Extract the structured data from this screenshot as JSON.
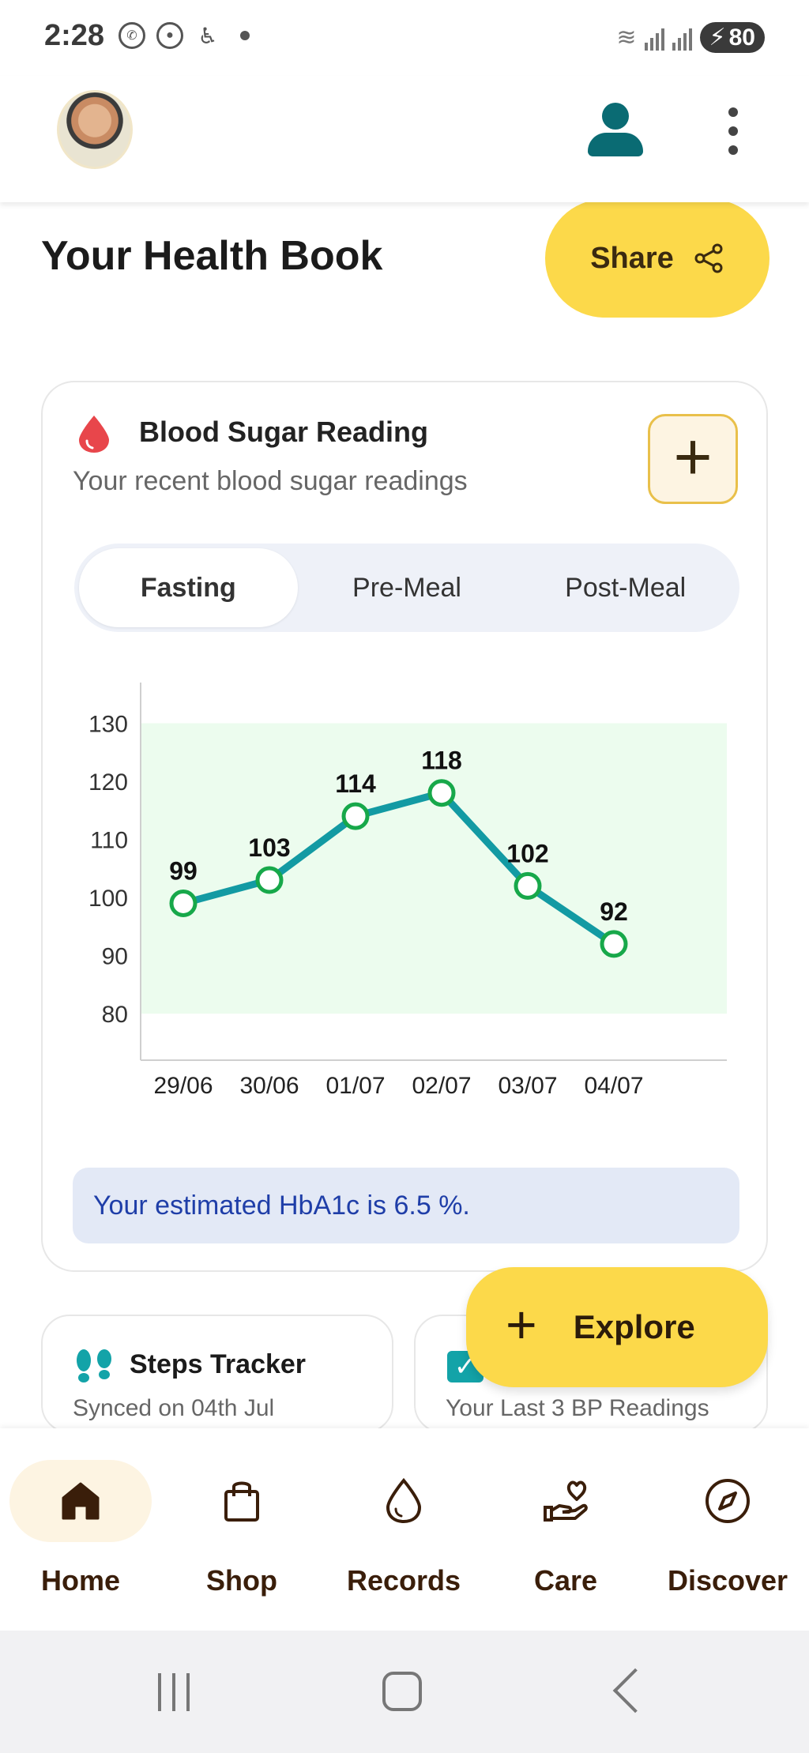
{
  "status_bar": {
    "time": "2:28",
    "battery": "80"
  },
  "header": {
    "avatar_alt": "profile photo"
  },
  "page": {
    "title": "Your Health Book",
    "share_label": "Share"
  },
  "blood_sugar_card": {
    "title": "Blood Sugar Reading",
    "subtitle": "Your recent blood sugar readings",
    "tabs": [
      {
        "label": "Fasting",
        "active": true
      },
      {
        "label": "Pre-Meal",
        "active": false
      },
      {
        "label": "Post-Meal",
        "active": false
      }
    ],
    "hba1c_text": "Your estimated HbA1c is 6.5 %."
  },
  "chart_data": {
    "type": "line",
    "categories": [
      "29/06",
      "30/06",
      "01/07",
      "02/07",
      "03/07",
      "04/07"
    ],
    "values": [
      99,
      103,
      114,
      118,
      102,
      92
    ],
    "y_ticks": [
      80,
      90,
      100,
      110,
      120,
      130
    ],
    "ylim": [
      72,
      137
    ],
    "normal_band": [
      80,
      130
    ],
    "colors": {
      "line": "#139aa3",
      "marker_stroke": "#17a84a",
      "band": "#ecfcee"
    },
    "grid": false
  },
  "cards": {
    "steps": {
      "title": "Steps Tracker",
      "subtitle": "Synced on 04th Jul"
    },
    "bp": {
      "subtitle": "Your Last 3 BP Readings"
    }
  },
  "explore": {
    "label": "Explore"
  },
  "bottom_nav": [
    {
      "label": "Home",
      "icon": "home-icon",
      "active": true
    },
    {
      "label": "Shop",
      "icon": "shopping-bag-icon",
      "active": false
    },
    {
      "label": "Records",
      "icon": "drop-icon",
      "active": false
    },
    {
      "label": "Care",
      "icon": "care-hand-heart-icon",
      "active": false
    },
    {
      "label": "Discover",
      "icon": "compass-icon",
      "active": false
    }
  ],
  "theme": {
    "accent": "#fcd94a",
    "teal": "#0a6b73",
    "nav_text": "#3a1e0a"
  }
}
